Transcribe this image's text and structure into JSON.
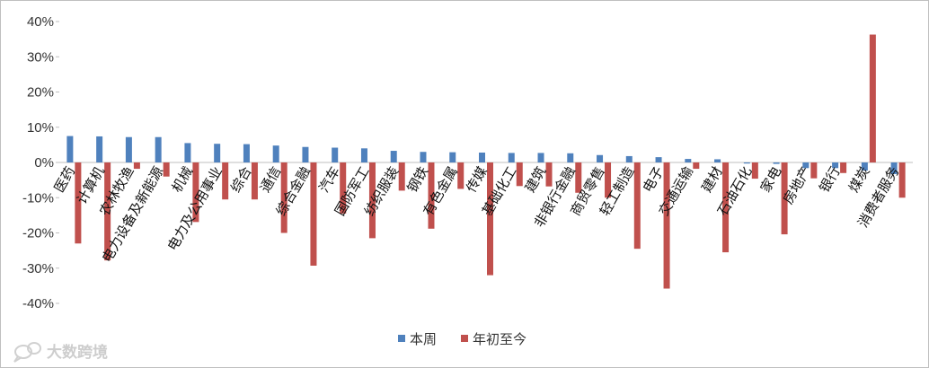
{
  "chart_data": {
    "type": "bar",
    "title": "",
    "xlabel": "",
    "ylabel": "",
    "ylim": [
      -40,
      40
    ],
    "yticks": [
      40,
      30,
      20,
      10,
      0,
      -10,
      -20,
      -30,
      -40
    ],
    "ytick_labels": [
      "40%",
      "30%",
      "20%",
      "10%",
      "0%",
      "-10%",
      "-20%",
      "-30%",
      "-40%"
    ],
    "grid": false,
    "legend_position": "bottom",
    "categories": [
      "医药",
      "计算机",
      "农林牧渔",
      "电力设备及新能源",
      "机械",
      "电力及公用事业",
      "综合",
      "通信",
      "综合金融",
      "汽车",
      "国防军工",
      "纺织服装",
      "钢铁",
      "有色金属",
      "传媒",
      "基础化工",
      "建筑",
      "非银行金融",
      "商贸零售",
      "轻工制造",
      "电子",
      "交通运输",
      "建材",
      "石油石化",
      "家电",
      "房地产",
      "银行",
      "煤炭",
      "消费者服务"
    ],
    "series": [
      {
        "name": "本周",
        "color": "#4f81bd",
        "values": [
          7.5,
          7.4,
          7.2,
          7.2,
          5.5,
          5.3,
          5.2,
          4.8,
          4.4,
          4.2,
          4.0,
          3.3,
          3.0,
          2.9,
          2.8,
          2.7,
          2.7,
          2.6,
          2.1,
          1.8,
          1.5,
          1.0,
          0.9,
          -0.3,
          -0.4,
          -1.6,
          -1.6,
          -2.3,
          -3.3
        ]
      },
      {
        "name": "年初至今",
        "color": "#c0504d",
        "values": [
          -23.0,
          -27.8,
          -1.8,
          -4.0,
          -16.9,
          -10.5,
          -10.5,
          -20.0,
          -29.3,
          -14.5,
          -21.5,
          -8.0,
          -18.8,
          -7.5,
          -32.0,
          -6.7,
          -6.8,
          -8.6,
          -10.0,
          -24.5,
          -35.8,
          -1.8,
          -25.5,
          -4.6,
          -20.4,
          -4.5,
          -3.0,
          36.3,
          -10.0
        ]
      }
    ]
  },
  "watermark": {
    "text": "大数跨境",
    "icon": "chat-bubble-logo-icon"
  }
}
